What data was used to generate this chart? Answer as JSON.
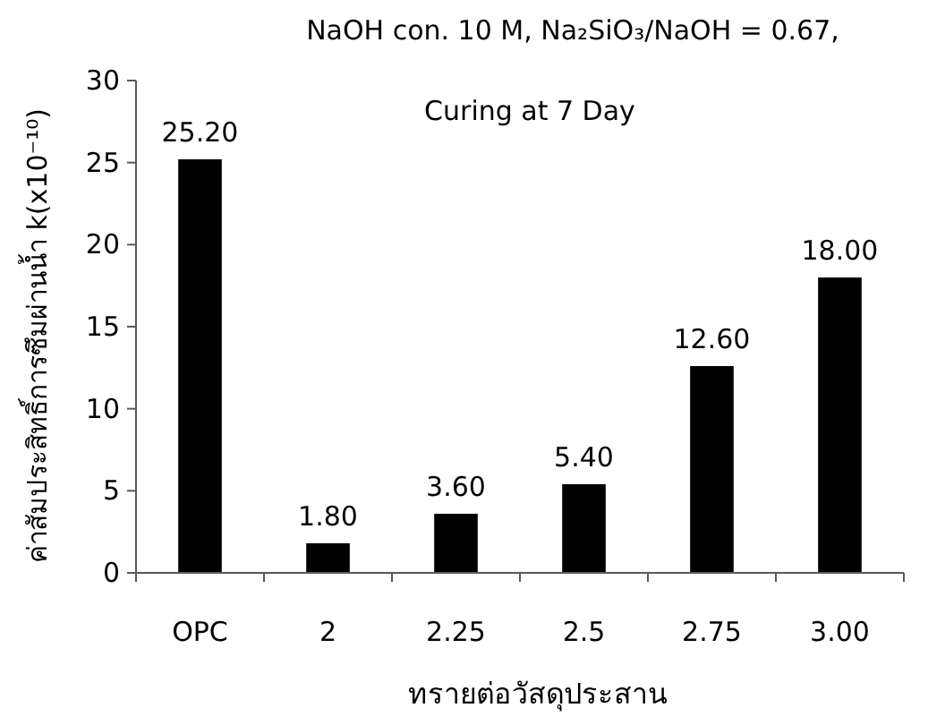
{
  "chart_data": {
    "type": "bar",
    "title": "NaOH con. 10 M, Na₂SiO₃/NaOH = 0.67,",
    "subtitle": "Curing at 7 Day",
    "xlabel": "ทรายต่อวัสดุประสาน",
    "ylabel": "ค่าสัมประสิทธิ์การซึมผ่านน้ำ k(x10⁻¹⁰)",
    "categories": [
      "OPC",
      "2",
      "2.25",
      "2.5",
      "2.75",
      "3.00"
    ],
    "values": [
      25.2,
      1.8,
      3.6,
      5.4,
      12.6,
      18.0
    ],
    "value_labels": [
      "25.20",
      "1.80",
      "3.60",
      "5.40",
      "12.60",
      "18.00"
    ],
    "color": "#000000",
    "ylim": [
      0,
      30
    ],
    "yticks": [
      0,
      5,
      10,
      15,
      20,
      25,
      30
    ],
    "grid": false
  }
}
